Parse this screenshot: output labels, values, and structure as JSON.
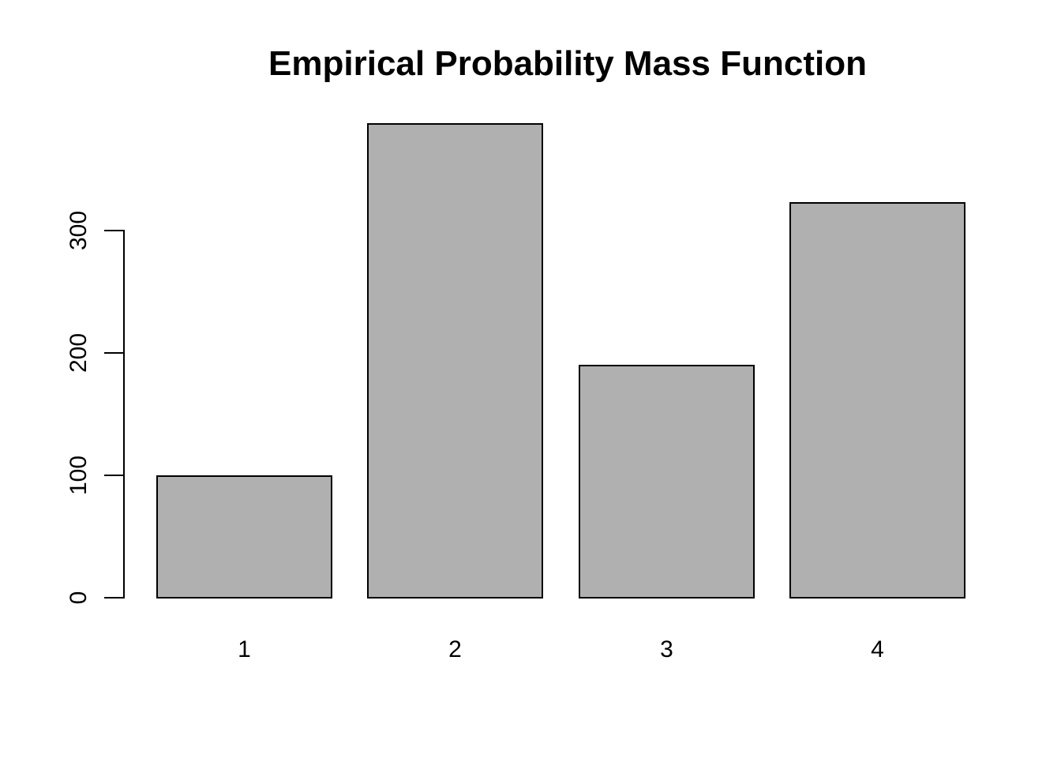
{
  "chart_data": {
    "type": "bar",
    "title": "Empirical Probability Mass Function",
    "categories": [
      "1",
      "2",
      "3",
      "4"
    ],
    "values": [
      100,
      388,
      190,
      323
    ],
    "xlabel": "",
    "ylabel": "",
    "yticks": [
      0,
      100,
      200,
      300
    ],
    "ylim": [
      0,
      300
    ],
    "grid": false,
    "legend": "none",
    "ytick_label_orientation": "rotated-90",
    "colors": {
      "bar_fill": "#b0b0b0",
      "bar_border": "#000000",
      "axis": "#000000",
      "text": "#000000",
      "background": "#ffffff"
    }
  }
}
